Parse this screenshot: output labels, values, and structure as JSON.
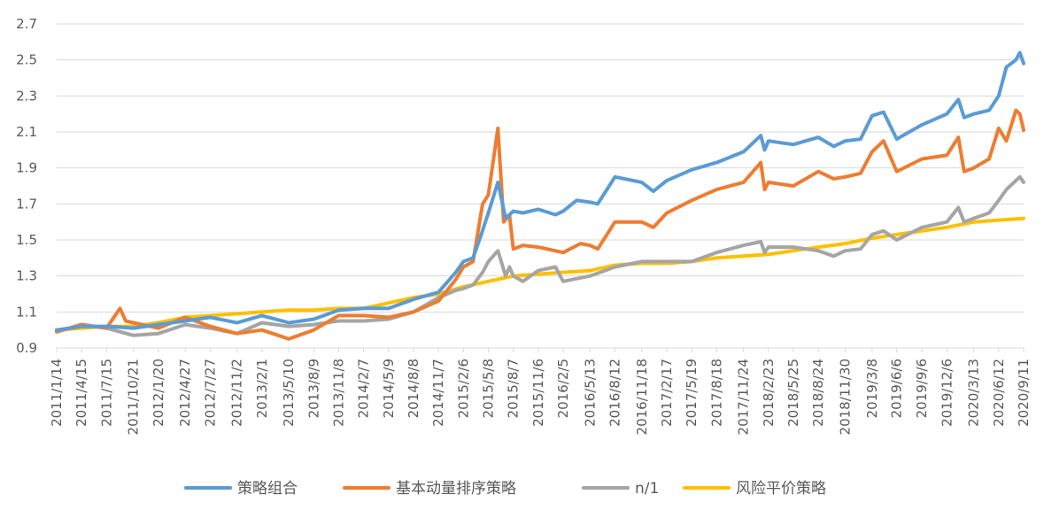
{
  "chart_data": {
    "type": "line",
    "title": "",
    "xlabel": "",
    "ylabel": "",
    "ylim": [
      0.9,
      2.7
    ],
    "yticks": [
      0.9,
      1.1,
      1.3,
      1.5,
      1.7,
      1.9,
      2.1,
      2.3,
      2.5,
      2.7
    ],
    "ytick_labels": [
      "0.9",
      "1.1",
      "1.3",
      "1.5",
      "1.7",
      "1.9",
      "2.1",
      "2.3",
      "2.5",
      "2.7"
    ],
    "xlim": [
      "2011-01-14",
      "2020-09-11"
    ],
    "grid": true,
    "legend_position": "bottom",
    "x_tick_labels": [
      "2011/1/14",
      "2011/4/15",
      "2011/7/15",
      "2011/10/21",
      "2012/1/20",
      "2012/4/27",
      "2012/7/27",
      "2012/11/2",
      "2013/2/1",
      "2013/5/10",
      "2013/8/9",
      "2013/11/8",
      "2014/2/7",
      "2014/5/9",
      "2014/8/8",
      "2014/11/7",
      "2015/2/6",
      "2015/5/8",
      "2015/8/7",
      "2015/11/6",
      "2016/2/5",
      "2016/5/13",
      "2016/8/12",
      "2016/11/18",
      "2017/2/17",
      "2017/5/19",
      "2017/8/18",
      "2017/11/24",
      "2018/2/23",
      "2018/5/25",
      "2018/8/24",
      "2018/11/30",
      "2019/3/8",
      "2019/6/6",
      "2019/9/6",
      "2019/12/6",
      "2020/3/13",
      "2020/6/12",
      "2020/9/11"
    ],
    "x_tick_dates": [
      "2011-01-14",
      "2011-04-15",
      "2011-07-15",
      "2011-10-21",
      "2012-01-20",
      "2012-04-27",
      "2012-07-27",
      "2012-11-02",
      "2013-02-01",
      "2013-05-10",
      "2013-08-09",
      "2013-11-08",
      "2014-02-07",
      "2014-05-09",
      "2014-08-08",
      "2014-11-07",
      "2015-02-06",
      "2015-05-08",
      "2015-08-07",
      "2015-11-06",
      "2016-02-05",
      "2016-05-13",
      "2016-08-12",
      "2016-11-18",
      "2017-02-17",
      "2017-05-19",
      "2017-08-18",
      "2017-11-24",
      "2018-02-23",
      "2018-05-25",
      "2018-08-24",
      "2018-11-30",
      "2019-03-08",
      "2019-06-06",
      "2019-09-06",
      "2019-12-06",
      "2020-03-13",
      "2020-06-12",
      "2020-09-11"
    ],
    "series": [
      {
        "name": "策略组合",
        "color": "#5B9BD5",
        "points": [
          [
            "2011-01-14",
            1.0
          ],
          [
            "2011-04-15",
            1.02
          ],
          [
            "2011-07-15",
            1.02
          ],
          [
            "2011-10-21",
            1.01
          ],
          [
            "2012-01-20",
            1.03
          ],
          [
            "2012-04-27",
            1.05
          ],
          [
            "2012-07-27",
            1.07
          ],
          [
            "2012-11-02",
            1.04
          ],
          [
            "2013-02-01",
            1.08
          ],
          [
            "2013-05-10",
            1.04
          ],
          [
            "2013-08-09",
            1.06
          ],
          [
            "2013-11-08",
            1.11
          ],
          [
            "2014-02-07",
            1.12
          ],
          [
            "2014-05-09",
            1.12
          ],
          [
            "2014-08-08",
            1.17
          ],
          [
            "2014-11-07",
            1.21
          ],
          [
            "2015-01-09",
            1.32
          ],
          [
            "2015-02-06",
            1.38
          ],
          [
            "2015-03-13",
            1.4
          ],
          [
            "2015-04-10",
            1.52
          ],
          [
            "2015-05-08",
            1.65
          ],
          [
            "2015-06-12",
            1.82
          ],
          [
            "2015-07-10",
            1.62
          ],
          [
            "2015-08-07",
            1.66
          ],
          [
            "2015-09-11",
            1.65
          ],
          [
            "2015-11-06",
            1.67
          ],
          [
            "2016-01-08",
            1.64
          ],
          [
            "2016-02-05",
            1.66
          ],
          [
            "2016-03-25",
            1.72
          ],
          [
            "2016-05-13",
            1.71
          ],
          [
            "2016-06-10",
            1.7
          ],
          [
            "2016-08-12",
            1.85
          ],
          [
            "2016-11-18",
            1.82
          ],
          [
            "2016-12-30",
            1.77
          ],
          [
            "2017-02-17",
            1.83
          ],
          [
            "2017-05-19",
            1.89
          ],
          [
            "2017-08-18",
            1.93
          ],
          [
            "2017-11-24",
            1.99
          ],
          [
            "2018-01-26",
            2.08
          ],
          [
            "2018-02-09",
            2.0
          ],
          [
            "2018-02-23",
            2.05
          ],
          [
            "2018-05-25",
            2.03
          ],
          [
            "2018-08-24",
            2.07
          ],
          [
            "2018-10-19",
            2.02
          ],
          [
            "2018-11-30",
            2.05
          ],
          [
            "2019-01-25",
            2.06
          ],
          [
            "2019-03-08",
            2.19
          ],
          [
            "2019-04-19",
            2.21
          ],
          [
            "2019-06-06",
            2.06
          ],
          [
            "2019-09-06",
            2.14
          ],
          [
            "2019-12-06",
            2.2
          ],
          [
            "2020-01-17",
            2.28
          ],
          [
            "2020-02-07",
            2.18
          ],
          [
            "2020-03-13",
            2.2
          ],
          [
            "2020-05-08",
            2.22
          ],
          [
            "2020-06-12",
            2.3
          ],
          [
            "2020-07-10",
            2.46
          ],
          [
            "2020-08-14",
            2.5
          ],
          [
            "2020-08-28",
            2.54
          ],
          [
            "2020-09-11",
            2.48
          ]
        ]
      },
      {
        "name": "基本动量排序策略",
        "color": "#ED7D31",
        "points": [
          [
            "2011-01-14",
            0.99
          ],
          [
            "2011-04-15",
            1.03
          ],
          [
            "2011-07-15",
            1.01
          ],
          [
            "2011-09-02",
            1.12
          ],
          [
            "2011-09-23",
            1.05
          ],
          [
            "2011-10-21",
            1.04
          ],
          [
            "2012-01-20",
            1.01
          ],
          [
            "2012-04-27",
            1.07
          ],
          [
            "2012-07-27",
            1.02
          ],
          [
            "2012-11-02",
            0.98
          ],
          [
            "2013-02-01",
            1.0
          ],
          [
            "2013-05-10",
            0.95
          ],
          [
            "2013-08-09",
            1.0
          ],
          [
            "2013-11-08",
            1.08
          ],
          [
            "2014-02-07",
            1.08
          ],
          [
            "2014-05-09",
            1.07
          ],
          [
            "2014-08-08",
            1.1
          ],
          [
            "2014-11-07",
            1.16
          ],
          [
            "2015-01-09",
            1.28
          ],
          [
            "2015-02-06",
            1.35
          ],
          [
            "2015-03-13",
            1.38
          ],
          [
            "2015-04-17",
            1.7
          ],
          [
            "2015-05-08",
            1.75
          ],
          [
            "2015-06-12",
            2.12
          ],
          [
            "2015-07-03",
            1.6
          ],
          [
            "2015-07-24",
            1.64
          ],
          [
            "2015-08-07",
            1.45
          ],
          [
            "2015-09-11",
            1.47
          ],
          [
            "2015-11-06",
            1.46
          ],
          [
            "2016-02-05",
            1.43
          ],
          [
            "2016-04-08",
            1.48
          ],
          [
            "2016-05-13",
            1.47
          ],
          [
            "2016-06-10",
            1.45
          ],
          [
            "2016-08-12",
            1.6
          ],
          [
            "2016-11-18",
            1.6
          ],
          [
            "2016-12-30",
            1.57
          ],
          [
            "2017-02-17",
            1.65
          ],
          [
            "2017-05-19",
            1.72
          ],
          [
            "2017-08-18",
            1.78
          ],
          [
            "2017-11-24",
            1.82
          ],
          [
            "2018-01-26",
            1.93
          ],
          [
            "2018-02-09",
            1.78
          ],
          [
            "2018-02-23",
            1.82
          ],
          [
            "2018-05-25",
            1.8
          ],
          [
            "2018-08-24",
            1.88
          ],
          [
            "2018-10-19",
            1.84
          ],
          [
            "2018-11-30",
            1.85
          ],
          [
            "2019-01-25",
            1.87
          ],
          [
            "2019-03-08",
            1.99
          ],
          [
            "2019-04-19",
            2.05
          ],
          [
            "2019-06-06",
            1.88
          ],
          [
            "2019-09-06",
            1.95
          ],
          [
            "2019-12-06",
            1.97
          ],
          [
            "2020-01-17",
            2.07
          ],
          [
            "2020-02-07",
            1.88
          ],
          [
            "2020-03-13",
            1.9
          ],
          [
            "2020-05-08",
            1.95
          ],
          [
            "2020-06-12",
            2.12
          ],
          [
            "2020-07-10",
            2.05
          ],
          [
            "2020-08-14",
            2.22
          ],
          [
            "2020-08-28",
            2.2
          ],
          [
            "2020-09-11",
            2.11
          ]
        ]
      },
      {
        "name": "n/1",
        "color": "#A5A5A5",
        "points": [
          [
            "2011-01-14",
            0.99
          ],
          [
            "2011-04-15",
            1.03
          ],
          [
            "2011-07-15",
            1.01
          ],
          [
            "2011-10-21",
            0.97
          ],
          [
            "2012-01-20",
            0.98
          ],
          [
            "2012-04-27",
            1.03
          ],
          [
            "2012-07-27",
            1.01
          ],
          [
            "2012-11-02",
            0.98
          ],
          [
            "2013-02-01",
            1.04
          ],
          [
            "2013-05-10",
            1.02
          ],
          [
            "2013-08-09",
            1.03
          ],
          [
            "2013-11-08",
            1.05
          ],
          [
            "2014-02-07",
            1.05
          ],
          [
            "2014-05-09",
            1.06
          ],
          [
            "2014-08-08",
            1.1
          ],
          [
            "2014-11-07",
            1.18
          ],
          [
            "2015-01-09",
            1.22
          ],
          [
            "2015-02-06",
            1.23
          ],
          [
            "2015-03-13",
            1.25
          ],
          [
            "2015-04-17",
            1.32
          ],
          [
            "2015-05-08",
            1.38
          ],
          [
            "2015-06-12",
            1.44
          ],
          [
            "2015-07-10",
            1.3
          ],
          [
            "2015-07-24",
            1.35
          ],
          [
            "2015-08-07",
            1.3
          ],
          [
            "2015-09-11",
            1.27
          ],
          [
            "2015-11-06",
            1.33
          ],
          [
            "2016-01-08",
            1.35
          ],
          [
            "2016-02-05",
            1.27
          ],
          [
            "2016-05-13",
            1.3
          ],
          [
            "2016-08-12",
            1.35
          ],
          [
            "2016-11-18",
            1.38
          ],
          [
            "2017-02-17",
            1.38
          ],
          [
            "2017-05-19",
            1.38
          ],
          [
            "2017-08-18",
            1.43
          ],
          [
            "2017-11-24",
            1.47
          ],
          [
            "2018-01-26",
            1.49
          ],
          [
            "2018-02-09",
            1.43
          ],
          [
            "2018-02-23",
            1.46
          ],
          [
            "2018-05-25",
            1.46
          ],
          [
            "2018-08-24",
            1.44
          ],
          [
            "2018-10-19",
            1.41
          ],
          [
            "2018-11-30",
            1.44
          ],
          [
            "2019-01-25",
            1.45
          ],
          [
            "2019-03-08",
            1.53
          ],
          [
            "2019-04-19",
            1.55
          ],
          [
            "2019-06-06",
            1.5
          ],
          [
            "2019-09-06",
            1.57
          ],
          [
            "2019-12-06",
            1.6
          ],
          [
            "2020-01-17",
            1.68
          ],
          [
            "2020-02-07",
            1.6
          ],
          [
            "2020-03-13",
            1.62
          ],
          [
            "2020-05-08",
            1.65
          ],
          [
            "2020-06-12",
            1.72
          ],
          [
            "2020-07-10",
            1.78
          ],
          [
            "2020-08-14",
            1.83
          ],
          [
            "2020-08-28",
            1.85
          ],
          [
            "2020-09-11",
            1.82
          ]
        ]
      },
      {
        "name": "风险平价策略",
        "color": "#FFC000",
        "points": [
          [
            "2011-01-14",
            1.0
          ],
          [
            "2011-04-15",
            1.01
          ],
          [
            "2011-07-15",
            1.02
          ],
          [
            "2011-10-21",
            1.02
          ],
          [
            "2012-01-20",
            1.04
          ],
          [
            "2012-04-27",
            1.07
          ],
          [
            "2012-07-27",
            1.08
          ],
          [
            "2012-11-02",
            1.09
          ],
          [
            "2013-02-01",
            1.1
          ],
          [
            "2013-05-10",
            1.11
          ],
          [
            "2013-08-09",
            1.11
          ],
          [
            "2013-11-08",
            1.12
          ],
          [
            "2014-02-07",
            1.12
          ],
          [
            "2014-05-09",
            1.15
          ],
          [
            "2014-08-08",
            1.18
          ],
          [
            "2014-11-07",
            1.2
          ],
          [
            "2015-02-06",
            1.24
          ],
          [
            "2015-05-08",
            1.27
          ],
          [
            "2015-08-07",
            1.3
          ],
          [
            "2015-11-06",
            1.31
          ],
          [
            "2016-02-05",
            1.32
          ],
          [
            "2016-05-13",
            1.33
          ],
          [
            "2016-08-12",
            1.36
          ],
          [
            "2016-11-18",
            1.37
          ],
          [
            "2017-02-17",
            1.37
          ],
          [
            "2017-05-19",
            1.38
          ],
          [
            "2017-08-18",
            1.4
          ],
          [
            "2017-11-24",
            1.41
          ],
          [
            "2018-02-23",
            1.42
          ],
          [
            "2018-05-25",
            1.44
          ],
          [
            "2018-08-24",
            1.46
          ],
          [
            "2018-11-30",
            1.48
          ],
          [
            "2019-03-08",
            1.51
          ],
          [
            "2019-06-06",
            1.53
          ],
          [
            "2019-09-06",
            1.55
          ],
          [
            "2019-12-06",
            1.57
          ],
          [
            "2020-03-13",
            1.6
          ],
          [
            "2020-06-12",
            1.61
          ],
          [
            "2020-09-11",
            1.62
          ]
        ]
      }
    ]
  }
}
